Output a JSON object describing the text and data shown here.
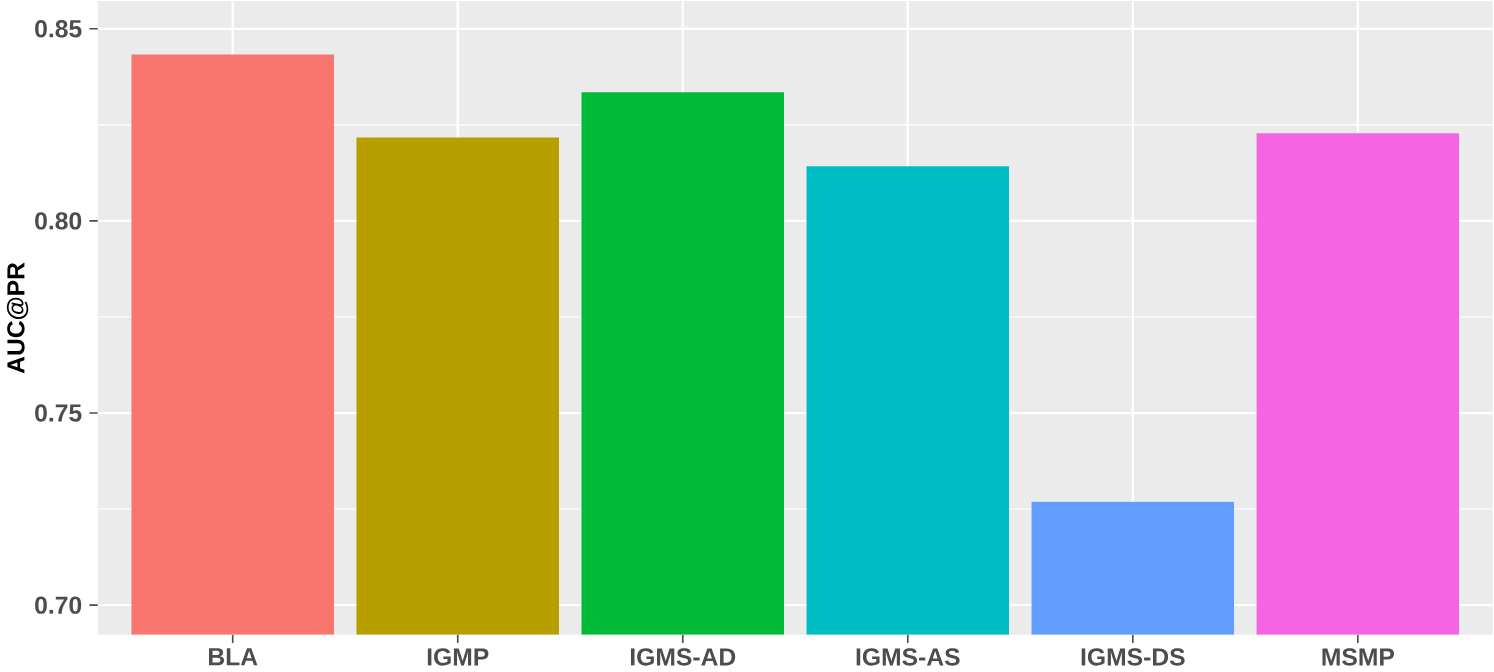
{
  "chart_data": {
    "type": "bar",
    "ylabel": "AUC@PR",
    "categories": [
      "BLA",
      "IGMP",
      "IGMS-AD",
      "IGMS-AS",
      "IGMS-DS",
      "MSMP"
    ],
    "values": [
      0.8433,
      0.8217,
      0.8335,
      0.8142,
      0.7269,
      0.8228
    ],
    "colors": [
      "#f8766d",
      "#b79f00",
      "#00ba38",
      "#00bfc4",
      "#619cff",
      "#f564e3"
    ],
    "ylim": [
      0.6923,
      0.8572
    ],
    "yticks": [
      {
        "value": 0.7,
        "label": "0.70"
      },
      {
        "value": 0.75,
        "label": "0.75"
      },
      {
        "value": 0.8,
        "label": "0.80"
      },
      {
        "value": 0.85,
        "label": "0.85"
      }
    ],
    "grid": true
  }
}
